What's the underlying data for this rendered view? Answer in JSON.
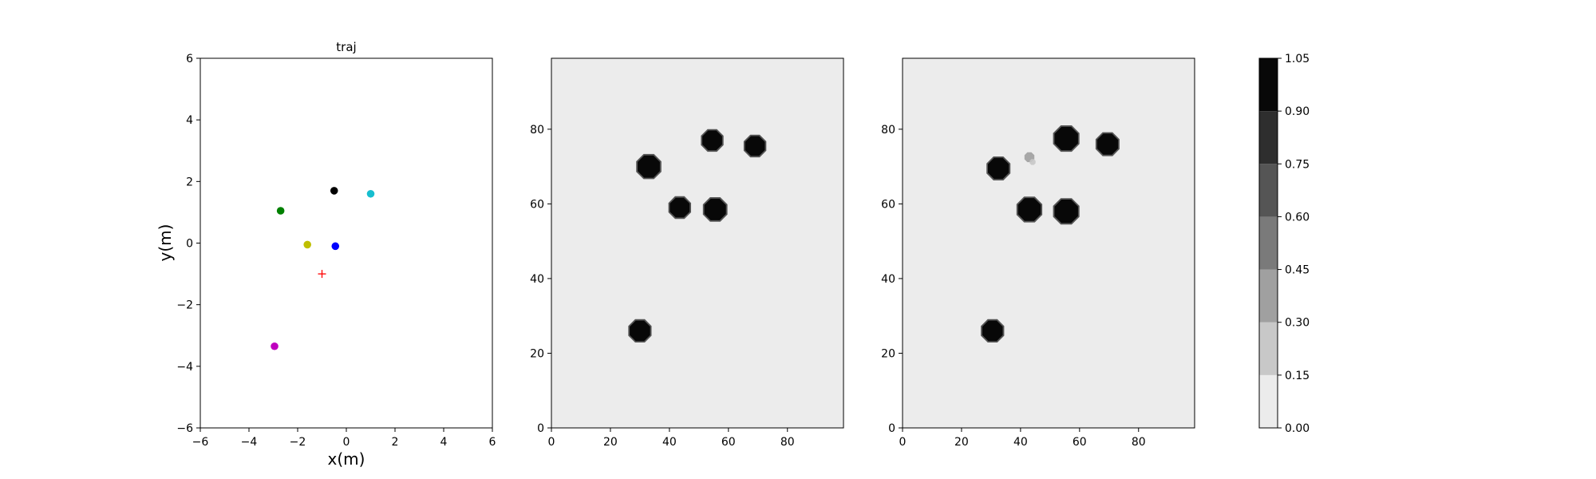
{
  "chart_data": [
    {
      "type": "scatter",
      "title": "traj",
      "xlabel": "x(m)",
      "ylabel": "y(m)",
      "xlim": [
        -6,
        6
      ],
      "ylim": [
        -6,
        6
      ],
      "xticks": [
        -6,
        -4,
        -2,
        0,
        2,
        4,
        6
      ],
      "yticks": [
        -6,
        -4,
        -2,
        0,
        2,
        4,
        6
      ],
      "grid": false,
      "points": [
        {
          "x": -2.7,
          "y": 1.05,
          "color": "#008000",
          "marker": "circle"
        },
        {
          "x": -0.5,
          "y": 1.7,
          "color": "#000000",
          "marker": "circle"
        },
        {
          "x": 1.0,
          "y": 1.6,
          "color": "#17becf",
          "marker": "circle"
        },
        {
          "x": -1.6,
          "y": -0.05,
          "color": "#bfbf00",
          "marker": "circle"
        },
        {
          "x": -0.45,
          "y": -0.1,
          "color": "#0000ff",
          "marker": "circle"
        },
        {
          "x": -1.0,
          "y": -1.0,
          "color": "#ff0000",
          "marker": "plus"
        },
        {
          "x": -2.95,
          "y": -3.35,
          "color": "#bf00bf",
          "marker": "circle"
        }
      ]
    },
    {
      "type": "heatmap",
      "title": "",
      "xlim": [
        0,
        99
      ],
      "ylim": [
        0,
        99
      ],
      "xticks": [
        0,
        20,
        40,
        60,
        80
      ],
      "yticks": [
        0,
        20,
        40,
        60,
        80
      ],
      "background_level": 0.05,
      "blobs": [
        {
          "cx": 33,
          "cy": 70,
          "r": 3.6
        },
        {
          "cx": 54.5,
          "cy": 77,
          "r": 3.2
        },
        {
          "cx": 69,
          "cy": 75.5,
          "r": 3.2
        },
        {
          "cx": 43.5,
          "cy": 59,
          "r": 3.2
        },
        {
          "cx": 55.5,
          "cy": 58.5,
          "r": 3.5
        },
        {
          "cx": 30,
          "cy": 26,
          "r": 3.3
        }
      ]
    },
    {
      "type": "heatmap",
      "title": "",
      "xlim": [
        0,
        99
      ],
      "ylim": [
        0,
        99
      ],
      "xticks": [
        0,
        20,
        40,
        60,
        80
      ],
      "yticks": [
        0,
        20,
        40,
        60,
        80
      ],
      "background_level": 0.05,
      "blobs": [
        {
          "cx": 32.5,
          "cy": 69.5,
          "r": 3.4
        },
        {
          "cx": 55.5,
          "cy": 77.5,
          "r": 3.8
        },
        {
          "cx": 69.5,
          "cy": 76,
          "r": 3.4
        },
        {
          "cx": 43,
          "cy": 58.5,
          "r": 3.7
        },
        {
          "cx": 55.5,
          "cy": 58,
          "r": 3.8
        },
        {
          "cx": 30.5,
          "cy": 26,
          "r": 3.3
        },
        {
          "cx": 43,
          "cy": 72.5,
          "r": 1.6,
          "level": 0.35
        }
      ]
    }
  ],
  "colorbar": {
    "ticks": [
      "0.00",
      "0.15",
      "0.30",
      "0.45",
      "0.60",
      "0.75",
      "0.90",
      "1.05"
    ],
    "colors": [
      "#ececec",
      "#c8c8c8",
      "#a0a0a0",
      "#7a7a7a",
      "#555555",
      "#2e2e2e",
      "#080808"
    ]
  }
}
